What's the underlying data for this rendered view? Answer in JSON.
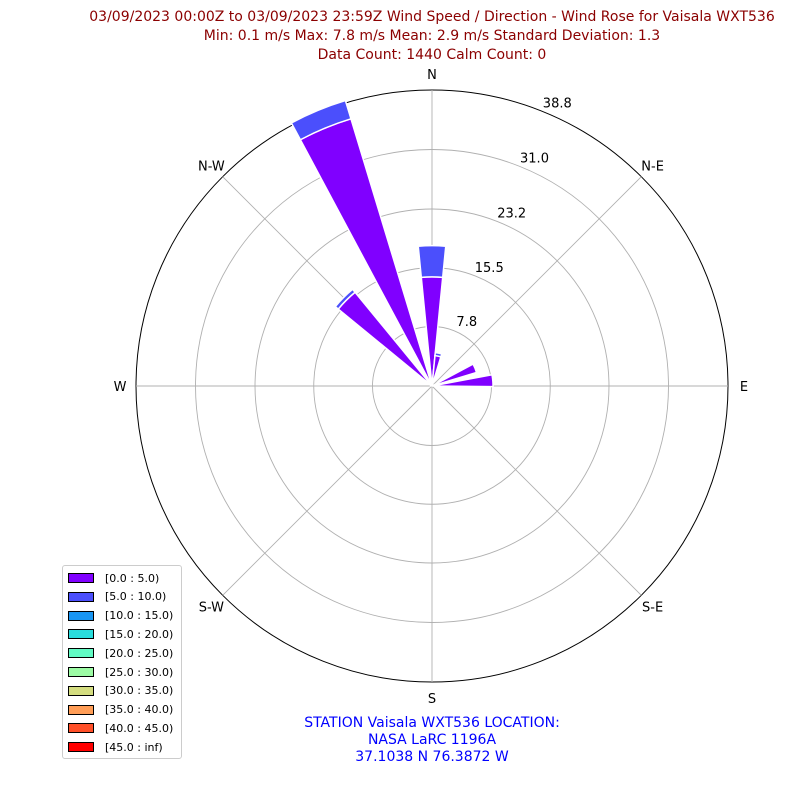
{
  "title_lines": [
    "03/09/2023 00:00Z to 03/09/2023 23:59Z Wind Speed / Direction - Wind Rose for Vaisala WXT536",
    "Min: 0.1 m/s   Max: 7.8 m/s   Mean: 2.9 m/s  Standard Deviation: 1.3",
    "Data Count: 1440  Calm Count:  0"
  ],
  "station_lines": [
    "STATION Vaisala WXT536 LOCATION:",
    "NASA LaRC 1196A",
    "37.1038 N 76.3872 W"
  ],
  "chart_data": {
    "type": "windrose",
    "directions": [
      "E",
      "N-E",
      "N",
      "N-W",
      "W",
      "S-W",
      "S",
      "S-E"
    ],
    "radial_ticks": [
      7.8,
      15.5,
      23.2,
      31.0,
      38.8
    ],
    "radial_max": 38.8,
    "grid": true,
    "sector_width_deg": 11.25,
    "legend_location": "lower-left",
    "speed_bins": [
      {
        "label": "[0.0 : 5.0)",
        "color": "#8000ff"
      },
      {
        "label": "[5.0 : 10.0)",
        "color": "#4b4ffc"
      },
      {
        "label": "[10.0 : 15.0)",
        "color": "#1996f3"
      },
      {
        "label": "[15.0 : 20.0)",
        "color": "#2adddd"
      },
      {
        "label": "[20.0 : 25.0)",
        "color": "#62fbc4"
      },
      {
        "label": "[25.0 : 30.0)",
        "color": "#9cfba4"
      },
      {
        "label": "[30.0 : 35.0)",
        "color": "#d4dd80"
      },
      {
        "label": "[35.0 : 40.0)",
        "color": "#ff9d56"
      },
      {
        "label": "[40.0 : 45.0)",
        "color": "#ff4f28"
      },
      {
        "label": "[45.0 : inf)",
        "color": "#ff0000"
      }
    ],
    "sectors": [
      {
        "direction_deg": 0,
        "values": [
          14.3,
          4.1
        ]
      },
      {
        "direction_deg": 11.25,
        "values": [
          4.0,
          0.4
        ]
      },
      {
        "direction_deg": 45,
        "values": [
          0.1
        ]
      },
      {
        "direction_deg": 67.5,
        "values": [
          6.1
        ]
      },
      {
        "direction_deg": 85,
        "values": [
          8.0
        ]
      },
      {
        "direction_deg": 285,
        "values": [
          0.2
        ]
      },
      {
        "direction_deg": 315,
        "values": [
          15.9,
          0.5
        ]
      },
      {
        "direction_deg": 337.5,
        "values": [
          36.6,
          2.5
        ]
      }
    ]
  }
}
